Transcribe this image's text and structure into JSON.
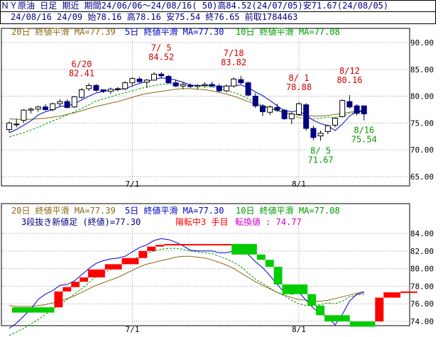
{
  "header": {
    "line1": "ＮＹ原油 日足 期近 期間24/06/06～24/08/16( 50)高84.52(24/07/05)安71.67(24/08/05)",
    "line2": "24/08/16 24/09 始78.16 高78.16 安75.54 終76.65 前取1784463"
  },
  "colors": {
    "ma20": "#8b6914",
    "ma5": "#0000cc",
    "ma10": "#009900",
    "bull": "#ffffff",
    "bear": "#000080",
    "annot_red": "#cc0000",
    "annot_green": "#009900",
    "kagi_up": "#ff0000",
    "kagi_down": "#00cc00",
    "grid": "#999999"
  },
  "chart_data": [
    {
      "type": "candlestick",
      "legend": [
        {
          "text": "20日 終値平滑 MA=77.39",
          "color": "#8b6914"
        },
        {
          "text": "5日 終値平滑 MA=77.30",
          "color": "#0000cc"
        },
        {
          "text": "10日 終値平滑 MA=77.08",
          "color": "#009900"
        }
      ],
      "ylim": [
        65,
        92
      ],
      "yticks": [
        "90.00",
        "85.00",
        "80.00",
        "75.00",
        "70.00",
        "65.00"
      ],
      "xticks": [
        "7/1",
        "8/1"
      ],
      "candles": [
        [
          73.8,
          75.3,
          73.2,
          75.0
        ],
        [
          74.8,
          75.8,
          74.2,
          74.8
        ],
        [
          75.5,
          77.6,
          75.0,
          77.4
        ],
        [
          77.4,
          77.9,
          76.8,
          77.6
        ],
        [
          77.6,
          78.2,
          77.1,
          78.0
        ],
        [
          78.0,
          78.5,
          77.3,
          77.5
        ],
        [
          77.5,
          78.8,
          77.2,
          78.6
        ],
        [
          78.6,
          79.4,
          78.0,
          79.0
        ],
        [
          79.0,
          79.4,
          77.7,
          77.9
        ],
        [
          78.0,
          80.0,
          77.8,
          79.9
        ],
        [
          79.8,
          81.5,
          79.5,
          81.2
        ],
        [
          81.4,
          82.4,
          81.0,
          82.0
        ],
        [
          82.0,
          82.3,
          80.8,
          81.1
        ],
        [
          81.2,
          81.3,
          80.6,
          80.9
        ],
        [
          80.9,
          81.6,
          80.4,
          81.3
        ],
        [
          81.3,
          81.7,
          80.9,
          81.4
        ],
        [
          81.4,
          82.8,
          81.1,
          82.5
        ],
        [
          82.5,
          83.5,
          82.0,
          83.3
        ],
        [
          83.2,
          83.6,
          82.5,
          82.7
        ],
        [
          82.6,
          83.2,
          81.6,
          83.0
        ],
        [
          83.0,
          84.5,
          82.9,
          84.1
        ],
        [
          84.1,
          84.5,
          83.3,
          83.8
        ],
        [
          83.7,
          83.9,
          82.4,
          82.5
        ],
        [
          82.5,
          83.0,
          81.7,
          81.9
        ],
        [
          81.9,
          82.6,
          81.3,
          82.2
        ],
        [
          82.0,
          82.4,
          81.5,
          81.8
        ],
        [
          81.8,
          82.3,
          81.3,
          82.0
        ],
        [
          82.0,
          82.6,
          81.6,
          82.2
        ],
        [
          82.2,
          82.7,
          81.7,
          81.9
        ],
        [
          81.9,
          82.3,
          80.7,
          81.0
        ],
        [
          81.0,
          82.2,
          80.7,
          81.9
        ],
        [
          81.9,
          83.5,
          81.6,
          83.2
        ],
        [
          83.1,
          83.8,
          82.2,
          82.5
        ],
        [
          82.5,
          82.7,
          80.0,
          80.2
        ],
        [
          80.0,
          80.6,
          77.8,
          78.2
        ],
        [
          78.2,
          78.5,
          76.3,
          77.1
        ],
        [
          77.0,
          78.3,
          76.5,
          78.0
        ],
        [
          77.9,
          78.6,
          77.1,
          77.4
        ],
        [
          77.4,
          77.6,
          75.6,
          75.8
        ],
        [
          75.8,
          77.0,
          74.8,
          76.7
        ],
        [
          76.6,
          78.9,
          76.3,
          78.6
        ],
        [
          78.4,
          78.7,
          73.6,
          74.0
        ],
        [
          74.0,
          74.5,
          71.8,
          72.3
        ],
        [
          72.6,
          73.6,
          71.7,
          73.1
        ],
        [
          73.4,
          74.7,
          72.9,
          74.5
        ],
        [
          74.6,
          76.0,
          74.2,
          75.9
        ],
        [
          76.2,
          79.4,
          76.0,
          79.2
        ],
        [
          79.0,
          80.2,
          77.7,
          78.0
        ],
        [
          78.2,
          78.5,
          76.4,
          76.8
        ],
        [
          78.2,
          78.2,
          75.5,
          76.7
        ]
      ],
      "ma5": [
        73.2,
        73.8,
        74.6,
        75.4,
        76.5,
        77.1,
        77.5,
        78.1,
        78.2,
        78.6,
        79.3,
        80.0,
        80.6,
        80.9,
        81.1,
        81.2,
        81.4,
        81.9,
        82.4,
        82.7,
        83.2,
        83.4,
        83.3,
        83.0,
        82.6,
        82.1,
        82.0,
        82.0,
        82.0,
        81.8,
        81.8,
        82.0,
        82.1,
        81.6,
        80.8,
        80.1,
        79.2,
        78.2,
        77.3,
        77.1,
        77.3,
        76.4,
        75.5,
        74.9,
        74.5,
        73.6,
        74.8,
        76.3,
        77.1,
        77.3
      ],
      "ma10": [
        72.4,
        72.8,
        73.2,
        73.7,
        74.2,
        74.8,
        75.4,
        75.9,
        76.5,
        77.1,
        77.7,
        78.4,
        79.1,
        79.5,
        79.9,
        80.3,
        80.6,
        81.0,
        81.4,
        81.7,
        82.0,
        82.2,
        82.3,
        82.3,
        82.2,
        82.0,
        81.9,
        81.8,
        81.7,
        81.4,
        81.1,
        80.7,
        80.2,
        79.5,
        78.8,
        78.3,
        77.8,
        77.3,
        76.9,
        76.4,
        76.0,
        75.8,
        75.8,
        75.9,
        76.1,
        76.0,
        76.3,
        76.8,
        77.0,
        77.1
      ],
      "ma20": [
        75.8,
        75.7,
        75.7,
        75.7,
        75.8,
        75.9,
        76.1,
        76.3,
        76.6,
        76.9,
        77.3,
        77.7,
        78.1,
        78.4,
        78.7,
        79.0,
        79.4,
        79.8,
        80.2,
        80.5,
        80.7,
        80.9,
        81.1,
        81.3,
        81.4,
        81.4,
        81.3,
        81.2,
        81.0,
        80.7,
        80.4,
        80.0,
        79.5,
        79.0,
        78.5,
        78.1,
        77.7,
        77.3,
        77.0,
        76.7,
        76.5,
        76.4,
        76.3,
        76.3,
        76.4,
        76.6,
        76.8,
        77.0,
        77.2,
        77.4
      ],
      "annotations": [
        {
          "label": "6/20",
          "value": "82.41",
          "color": "#cc0000",
          "index": 10
        },
        {
          "label": "7/ 5",
          "value": "84.52",
          "color": "#cc0000",
          "index": 21
        },
        {
          "label": "7/18",
          "value": "83.82",
          "color": "#cc0000",
          "index": 31
        },
        {
          "label": "8/ 1",
          "value": "78.88",
          "color": "#cc0000",
          "index": 40
        },
        {
          "label": "8/12",
          "value": "80.16",
          "color": "#cc0000",
          "index": 47
        },
        {
          "label": "8/ 5",
          "value": "71.67",
          "color": "#009900",
          "index": 43
        },
        {
          "label": "8/16",
          "value": "75.54",
          "color": "#009900",
          "index": 49
        }
      ]
    },
    {
      "type": "step",
      "legend": [
        {
          "text": "20日 終値平滑 MA=77.39",
          "color": "#8b6914"
        },
        {
          "text": "5日 終値平滑 MA=77.30",
          "color": "#0000cc"
        },
        {
          "text": "10日 終値平滑 MA=77.08",
          "color": "#009900"
        }
      ],
      "info": [
        {
          "text": "3段抜き新値足 (終値)=77.30",
          "color": "#000080"
        },
        {
          "text": "陽転中",
          "color": "#ff0000"
        },
        {
          "text": "3 手目",
          "color": "#ff0000"
        },
        {
          "text": "転換値 : 74.77",
          "color": "#cc00cc"
        }
      ],
      "ylim": [
        73,
        85.6
      ],
      "yticks": [
        "84.00",
        "82.00",
        "80.00",
        "78.00",
        "76.00",
        "74.00"
      ],
      "xticks": [
        "7/1",
        "8/1"
      ],
      "blocks": [
        {
          "from": 0,
          "to": 5,
          "low": 75.0,
          "high": 75.6,
          "dir": "down"
        },
        {
          "from": 5,
          "to": 6,
          "low": 75.6,
          "high": 77.4,
          "dir": "up"
        },
        {
          "from": 6,
          "to": 7,
          "low": 77.4,
          "high": 77.9,
          "dir": "up"
        },
        {
          "from": 7,
          "to": 8,
          "low": 77.9,
          "high": 78.5,
          "dir": "up"
        },
        {
          "from": 8,
          "to": 9,
          "low": 78.5,
          "high": 79.0,
          "dir": "up"
        },
        {
          "from": 9,
          "to": 11,
          "low": 79.0,
          "high": 79.9,
          "dir": "up"
        },
        {
          "from": 11,
          "to": 13,
          "low": 79.9,
          "high": 80.5,
          "dir": "up"
        },
        {
          "from": 13,
          "to": 15,
          "low": 80.5,
          "high": 81.2,
          "dir": "up"
        },
        {
          "from": 15,
          "to": 16,
          "low": 81.2,
          "high": 82.0,
          "dir": "up"
        },
        {
          "from": 16,
          "to": 17,
          "low": 82.0,
          "high": 82.5,
          "dir": "up"
        },
        {
          "from": 17,
          "to": 18,
          "low": 82.5,
          "high": 82.7,
          "dir": "up"
        },
        {
          "from": 18,
          "to": 26,
          "low": 82.7,
          "high": 82.8,
          "dir": "up"
        },
        {
          "from": 26,
          "to": 29,
          "low": 81.6,
          "high": 82.8,
          "dir": "down"
        },
        {
          "from": 29,
          "to": 30,
          "low": 81.0,
          "high": 81.6,
          "dir": "down"
        },
        {
          "from": 30,
          "to": 31,
          "low": 80.2,
          "high": 81.0,
          "dir": "down"
        },
        {
          "from": 31,
          "to": 32,
          "low": 78.2,
          "high": 80.2,
          "dir": "down"
        },
        {
          "from": 32,
          "to": 35,
          "low": 77.1,
          "high": 78.2,
          "dir": "down"
        },
        {
          "from": 35,
          "to": 36,
          "low": 75.8,
          "high": 77.1,
          "dir": "down"
        },
        {
          "from": 36,
          "to": 37,
          "low": 74.7,
          "high": 75.8,
          "dir": "down"
        },
        {
          "from": 37,
          "to": 40,
          "low": 74.0,
          "high": 74.7,
          "dir": "down"
        },
        {
          "from": 40,
          "to": 43,
          "low": 73.4,
          "high": 74.0,
          "dir": "down"
        },
        {
          "from": 43,
          "to": 44,
          "low": 74.0,
          "high": 76.7,
          "dir": "up"
        },
        {
          "from": 44,
          "to": 46,
          "low": 76.7,
          "high": 77.3,
          "dir": "up"
        },
        {
          "from": 46,
          "to": 48,
          "low": 77.3,
          "high": 77.4,
          "dir": "up"
        }
      ],
      "ma5": [
        73.2,
        73.8,
        74.6,
        75.4,
        76.5,
        77.1,
        77.5,
        78.1,
        78.2,
        78.6,
        79.3,
        80.0,
        80.6,
        80.9,
        81.1,
        81.2,
        81.4,
        81.9,
        82.4,
        82.7,
        83.2,
        83.4,
        83.3,
        83.0,
        82.6,
        82.1,
        82.0,
        82.0,
        82.0,
        81.8,
        81.8,
        82.0,
        82.1,
        81.6,
        80.8,
        80.1,
        79.2,
        78.2,
        77.3,
        77.1,
        77.3,
        76.4,
        75.5,
        74.9,
        74.5,
        73.6,
        74.8,
        76.3,
        77.1,
        77.3
      ],
      "ma10": [
        72.4,
        72.8,
        73.2,
        73.7,
        74.2,
        74.8,
        75.4,
        75.9,
        76.5,
        77.1,
        77.7,
        78.4,
        79.1,
        79.5,
        79.9,
        80.3,
        80.6,
        81.0,
        81.4,
        81.7,
        82.0,
        82.2,
        82.3,
        82.3,
        82.2,
        82.0,
        81.9,
        81.8,
        81.7,
        81.4,
        81.1,
        80.7,
        80.2,
        79.5,
        78.8,
        78.3,
        77.8,
        77.3,
        76.9,
        76.4,
        76.0,
        75.8,
        75.8,
        75.9,
        76.1,
        76.0,
        76.3,
        76.8,
        77.0,
        77.1
      ],
      "ma20": [
        75.8,
        75.7,
        75.7,
        75.7,
        75.8,
        75.9,
        76.1,
        76.3,
        76.6,
        76.9,
        77.3,
        77.7,
        78.1,
        78.4,
        78.7,
        79.0,
        79.4,
        79.8,
        80.2,
        80.5,
        80.7,
        80.9,
        81.1,
        81.3,
        81.4,
        81.4,
        81.3,
        81.2,
        81.0,
        80.7,
        80.4,
        80.0,
        79.5,
        79.0,
        78.5,
        78.1,
        77.7,
        77.3,
        77.0,
        76.7,
        76.5,
        76.4,
        76.3,
        76.3,
        76.4,
        76.6,
        76.8,
        77.0,
        77.2,
        77.4
      ]
    }
  ]
}
